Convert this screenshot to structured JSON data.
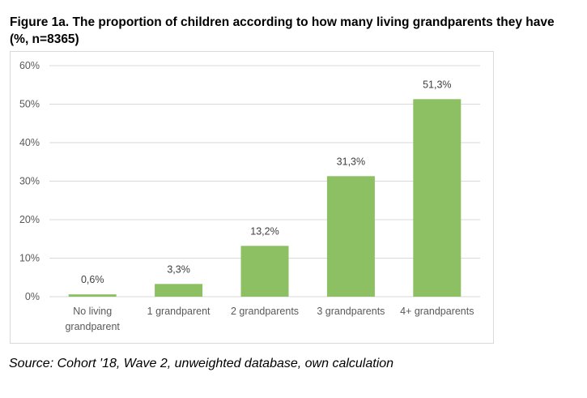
{
  "title_line1": "Figure 1a. The proportion of children according to how many living grandparents they have",
  "title_line2": "(%, n=8365)",
  "source": "Source: Cohort '18, Wave 2, unweighted database, own calculation",
  "chart_data": {
    "type": "bar",
    "title": "",
    "xlabel": "",
    "ylabel": "",
    "categories": [
      [
        "No living",
        "grandparent"
      ],
      [
        "1 grandparent"
      ],
      [
        "2 grandparents"
      ],
      [
        "3 grandparents"
      ],
      [
        "4+ grandparents"
      ]
    ],
    "values": [
      0.6,
      3.3,
      13.2,
      31.3,
      51.3
    ],
    "data_labels": [
      "0,6%",
      "3,3%",
      "13,2%",
      "31,3%",
      "51,3%"
    ],
    "yticks": [
      0,
      10,
      20,
      30,
      40,
      50,
      60
    ],
    "ytick_labels": [
      "0%",
      "10%",
      "20%",
      "30%",
      "40%",
      "50%",
      "60%"
    ],
    "ylim": [
      0,
      60
    ],
    "grid": true,
    "legend": "none",
    "bar_color": "#8cc063",
    "grid_color": "#d9d9d9"
  }
}
